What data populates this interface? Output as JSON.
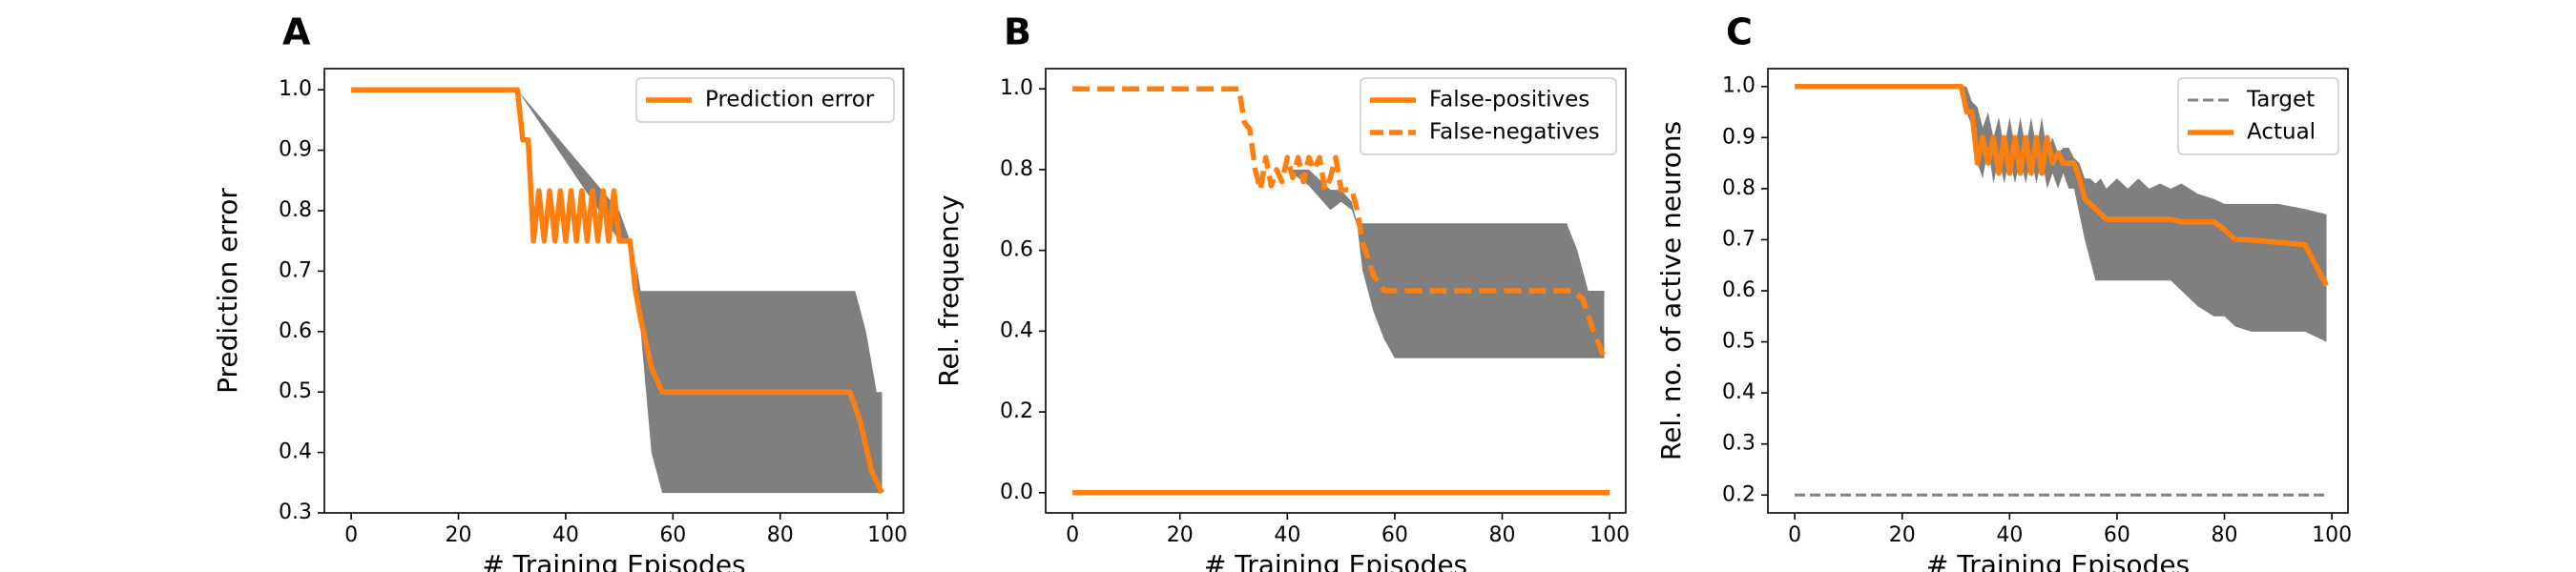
{
  "colors": {
    "orange": "#ff7f0e",
    "band": "#7f7f7f",
    "target": "#808080",
    "axis": "#000000"
  },
  "chart_data": [
    {
      "type": "line",
      "panel": "A",
      "xlabel": "# Training Episodes",
      "ylabel": "Prediction error",
      "xlim": [
        -5,
        103
      ],
      "ylim": [
        0.3,
        1.035
      ],
      "xticks": [
        0,
        20,
        40,
        60,
        80,
        100
      ],
      "xtick_labels": [
        "0",
        "20",
        "40",
        "60",
        "80",
        "100"
      ],
      "yticks": [
        0.3,
        0.4,
        0.5,
        0.6,
        0.7,
        0.8,
        0.9,
        1.0
      ],
      "ytick_labels": [
        "0.3",
        "0.4",
        "0.5",
        "0.6",
        "0.7",
        "0.8",
        "0.9",
        "1.0"
      ],
      "grid": false,
      "legend_position": "top-right",
      "band": {
        "x": [
          0,
          31,
          50,
          52,
          53,
          54,
          56,
          58,
          60,
          70,
          80,
          90,
          92,
          94,
          96,
          98,
          99
        ],
        "lower": [
          1.0,
          1.0,
          0.75,
          0.75,
          0.72,
          0.6,
          0.4,
          0.333,
          0.333,
          0.333,
          0.333,
          0.333,
          0.333,
          0.333,
          0.333,
          0.333,
          0.333
        ],
        "upper": [
          1.0,
          1.0,
          0.8,
          0.75,
          0.72,
          0.667,
          0.667,
          0.667,
          0.667,
          0.667,
          0.667,
          0.667,
          0.667,
          0.667,
          0.6,
          0.5,
          0.5
        ]
      },
      "series": [
        {
          "name": "Prediction error",
          "style": "solid",
          "x": [
            0,
            31,
            32,
            33,
            34,
            35,
            36,
            37,
            38,
            39,
            40,
            41,
            42,
            43,
            44,
            45,
            46,
            47,
            48,
            49,
            50,
            51,
            52,
            53,
            54,
            55,
            56,
            57,
            58,
            60,
            70,
            80,
            90,
            93,
            95,
            97,
            99
          ],
          "y": [
            1.0,
            1.0,
            0.917,
            0.917,
            0.75,
            0.833,
            0.75,
            0.833,
            0.75,
            0.833,
            0.75,
            0.833,
            0.75,
            0.833,
            0.75,
            0.833,
            0.75,
            0.833,
            0.75,
            0.833,
            0.75,
            0.75,
            0.75,
            0.667,
            0.62,
            0.58,
            0.54,
            0.52,
            0.5,
            0.5,
            0.5,
            0.5,
            0.5,
            0.5,
            0.45,
            0.37,
            0.333
          ]
        }
      ]
    },
    {
      "type": "line",
      "panel": "B",
      "xlabel": "# Training Episodes",
      "ylabel": "Rel. frequency",
      "xlim": [
        -5,
        103
      ],
      "ylim": [
        -0.05,
        1.05
      ],
      "xticks": [
        0,
        20,
        40,
        60,
        80,
        100
      ],
      "xtick_labels": [
        "0",
        "20",
        "40",
        "60",
        "80",
        "100"
      ],
      "yticks": [
        0.0,
        0.2,
        0.4,
        0.6,
        0.8,
        1.0
      ],
      "ytick_labels": [
        "0.0",
        "0.2",
        "0.4",
        "0.6",
        "0.8",
        "1.0"
      ],
      "grid": false,
      "legend_position": "top-right",
      "band": {
        "x": [
          0,
          31,
          34,
          36,
          40,
          44,
          48,
          50,
          52,
          53,
          54,
          56,
          58,
          60,
          70,
          80,
          90,
          92,
          94,
          96,
          98,
          99
        ],
        "lower": [
          1.0,
          1.0,
          0.8,
          0.78,
          0.8,
          0.76,
          0.7,
          0.72,
          0.7,
          0.66,
          0.55,
          0.45,
          0.38,
          0.333,
          0.333,
          0.333,
          0.333,
          0.333,
          0.333,
          0.333,
          0.333,
          0.333
        ],
        "upper": [
          1.0,
          1.0,
          0.8,
          0.78,
          0.8,
          0.8,
          0.75,
          0.75,
          0.72,
          0.667,
          0.667,
          0.667,
          0.667,
          0.667,
          0.667,
          0.667,
          0.667,
          0.667,
          0.6,
          0.5,
          0.5,
          0.5
        ]
      },
      "series": [
        {
          "name": "False-positives",
          "style": "solid",
          "x": [
            0,
            100
          ],
          "y": [
            0.0,
            0.0
          ]
        },
        {
          "name": "False-negatives",
          "style": "dashed",
          "x": [
            0,
            31,
            32,
            33,
            34,
            35,
            36,
            37,
            38,
            39,
            40,
            41,
            42,
            43,
            44,
            45,
            46,
            47,
            48,
            49,
            50,
            51,
            52,
            53,
            54,
            55,
            56,
            57,
            58,
            60,
            70,
            80,
            90,
            93,
            95,
            97,
            99
          ],
          "y": [
            1.0,
            1.0,
            0.917,
            0.9,
            0.8,
            0.75,
            0.83,
            0.76,
            0.8,
            0.77,
            0.83,
            0.78,
            0.83,
            0.77,
            0.83,
            0.8,
            0.83,
            0.75,
            0.78,
            0.83,
            0.75,
            0.75,
            0.75,
            0.7,
            0.62,
            0.58,
            0.54,
            0.52,
            0.5,
            0.5,
            0.5,
            0.5,
            0.5,
            0.5,
            0.48,
            0.4,
            0.333
          ]
        }
      ]
    },
    {
      "type": "line",
      "panel": "C",
      "xlabel": "# Training Episodes",
      "ylabel": "Rel. no. of active neurons",
      "xlim": [
        -5,
        103
      ],
      "ylim": [
        0.165,
        1.035
      ],
      "xticks": [
        0,
        20,
        40,
        60,
        80,
        100
      ],
      "xtick_labels": [
        "0",
        "20",
        "40",
        "60",
        "80",
        "100"
      ],
      "yticks": [
        0.2,
        0.3,
        0.4,
        0.5,
        0.6,
        0.7,
        0.8,
        0.9,
        1.0
      ],
      "ytick_labels": [
        "0.2",
        "0.3",
        "0.4",
        "0.5",
        "0.6",
        "0.7",
        "0.8",
        "0.9",
        "1.0"
      ],
      "grid": false,
      "legend_position": "top-right",
      "band": {
        "x": [
          0,
          31,
          32,
          33,
          34,
          35,
          36,
          37,
          38,
          39,
          40,
          41,
          42,
          43,
          44,
          45,
          46,
          47,
          48,
          49,
          50,
          51,
          52,
          53,
          54,
          55,
          56,
          57,
          58,
          60,
          62,
          64,
          66,
          68,
          70,
          72,
          75,
          78,
          80,
          82,
          85,
          90,
          95,
          99
        ],
        "lower": [
          1.0,
          1.0,
          0.95,
          0.92,
          0.85,
          0.82,
          0.88,
          0.81,
          0.86,
          0.81,
          0.86,
          0.81,
          0.86,
          0.81,
          0.86,
          0.81,
          0.86,
          0.8,
          0.83,
          0.8,
          0.83,
          0.8,
          0.8,
          0.75,
          0.7,
          0.66,
          0.62,
          0.62,
          0.62,
          0.62,
          0.62,
          0.62,
          0.62,
          0.62,
          0.62,
          0.6,
          0.57,
          0.55,
          0.55,
          0.53,
          0.52,
          0.52,
          0.52,
          0.5
        ],
        "upper": [
          1.0,
          1.0,
          1.0,
          0.97,
          0.96,
          0.92,
          0.95,
          0.9,
          0.94,
          0.88,
          0.94,
          0.88,
          0.94,
          0.88,
          0.94,
          0.88,
          0.94,
          0.87,
          0.9,
          0.87,
          0.88,
          0.88,
          0.86,
          0.85,
          0.82,
          0.82,
          0.81,
          0.82,
          0.8,
          0.82,
          0.8,
          0.82,
          0.8,
          0.81,
          0.8,
          0.81,
          0.79,
          0.78,
          0.77,
          0.77,
          0.77,
          0.77,
          0.76,
          0.75
        ]
      },
      "series": [
        {
          "name": "Target",
          "style": "dashed-thin",
          "x": [
            0,
            99
          ],
          "y": [
            0.2,
            0.2
          ]
        },
        {
          "name": "Actual",
          "style": "solid",
          "x": [
            0,
            31,
            32,
            33,
            34,
            35,
            36,
            37,
            38,
            39,
            40,
            41,
            42,
            43,
            44,
            45,
            46,
            47,
            48,
            49,
            50,
            51,
            52,
            53,
            54,
            55,
            56,
            58,
            60,
            65,
            70,
            72,
            75,
            78,
            80,
            82,
            84,
            90,
            95,
            97,
            99
          ],
          "y": [
            1.0,
            1.0,
            0.95,
            0.95,
            0.85,
            0.9,
            0.85,
            0.9,
            0.83,
            0.9,
            0.83,
            0.9,
            0.83,
            0.9,
            0.83,
            0.9,
            0.83,
            0.9,
            0.85,
            0.87,
            0.85,
            0.85,
            0.85,
            0.82,
            0.78,
            0.77,
            0.76,
            0.74,
            0.74,
            0.74,
            0.74,
            0.735,
            0.735,
            0.735,
            0.72,
            0.7,
            0.7,
            0.695,
            0.69,
            0.65,
            0.61
          ]
        }
      ]
    }
  ]
}
